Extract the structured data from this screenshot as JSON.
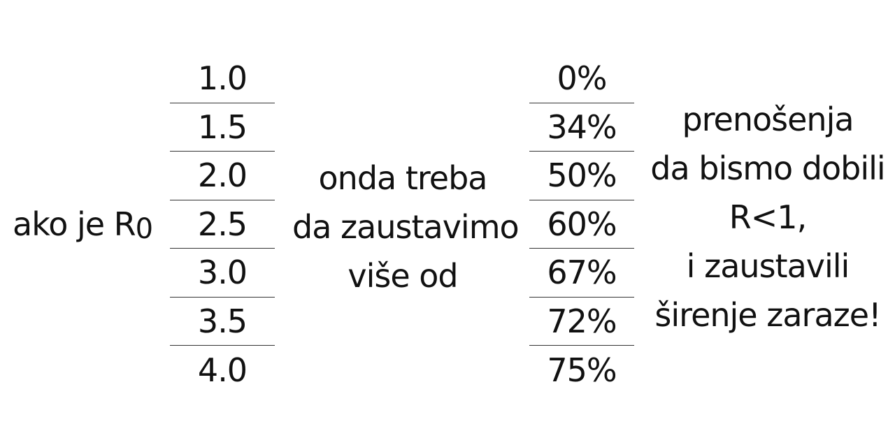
{
  "left_label": {
    "prefix": "ako je R",
    "subscript": "0"
  },
  "r0_values": [
    "1.0",
    "1.5",
    "2.0",
    "2.5",
    "3.0",
    "3.5",
    "4.0"
  ],
  "middle_lines": [
    "onda treba",
    "da zaustavimo",
    "više od"
  ],
  "percent_values": [
    "0%",
    "34%",
    "50%",
    "60%",
    "67%",
    "72%",
    "75%"
  ],
  "right_lines": [
    "prenošenja",
    "da bismo dobili",
    "R<1,",
    "i zaustavili",
    "širenje zaraze!"
  ]
}
